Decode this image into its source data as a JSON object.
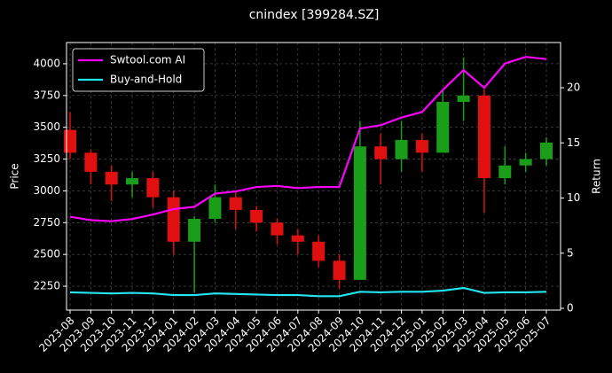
{
  "chart_data": {
    "type": "candlestick",
    "title": "cnindex [399284.SZ]",
    "ylabel": "Price",
    "y2label": "Return",
    "categories": [
      "2023-08",
      "2023-09",
      "2023-10",
      "2023-11",
      "2023-12",
      "2024-01",
      "2024-02",
      "2024-03",
      "2024-04",
      "2024-05",
      "2024-06",
      "2024-07",
      "2024-08",
      "2024-09",
      "2024-10",
      "2024-11",
      "2024-12",
      "2025-01",
      "2025-02",
      "2025-03",
      "2025-04",
      "2025-05",
      "2025-06",
      "2025-07"
    ],
    "open": [
      3480,
      3300,
      3150,
      3050,
      3100,
      2950,
      2600,
      2780,
      2950,
      2850,
      2750,
      2650,
      2600,
      2450,
      2300,
      3350,
      3250,
      3400,
      3300,
      3700,
      3750,
      3100,
      3200,
      3250
    ],
    "high": [
      3620,
      3320,
      3200,
      3150,
      3150,
      3000,
      2800,
      3050,
      3000,
      2880,
      2780,
      2700,
      2650,
      2500,
      3550,
      3450,
      3550,
      3450,
      3800,
      4050,
      3800,
      3350,
      3300,
      3420
    ],
    "low": [
      3250,
      3050,
      2920,
      2950,
      2870,
      2500,
      2200,
      2750,
      2700,
      2680,
      2580,
      2500,
      2400,
      2230,
      2300,
      3050,
      3150,
      3150,
      3300,
      3550,
      2830,
      3050,
      3150,
      3200
    ],
    "close": [
      3300,
      3150,
      3050,
      3100,
      2950,
      2600,
      2780,
      2950,
      2850,
      2750,
      2650,
      2600,
      2450,
      2300,
      3350,
      3250,
      3400,
      3300,
      3700,
      3750,
      3100,
      3200,
      3250,
      3380
    ],
    "up_color": "#1a9e1a",
    "down_color": "#e01010",
    "ylim": [
      2062,
      4167
    ],
    "yticks": [
      2250,
      2500,
      2750,
      3000,
      3250,
      3500,
      3750,
      4000
    ],
    "y2lim": [
      -0.16,
      24.1
    ],
    "y2ticks": [
      0,
      5,
      10,
      15,
      20
    ],
    "grid": true,
    "legend": "upper left",
    "series": [
      {
        "name": "Swtool.com AI",
        "color": "#ff00ff",
        "axis": "y2",
        "values": [
          8.3,
          8.0,
          7.9,
          8.1,
          8.5,
          9.0,
          9.2,
          10.4,
          10.6,
          11.0,
          11.1,
          10.9,
          11.0,
          11.0,
          16.3,
          16.6,
          17.3,
          17.8,
          19.8,
          21.6,
          20.0,
          22.2,
          22.8,
          22.6
        ]
      },
      {
        "name": "Buy-and-Hold",
        "color": "#22e5f0",
        "axis": "y2",
        "values": [
          1.45,
          1.4,
          1.35,
          1.4,
          1.35,
          1.2,
          1.2,
          1.35,
          1.3,
          1.25,
          1.2,
          1.2,
          1.1,
          1.1,
          1.5,
          1.45,
          1.5,
          1.5,
          1.6,
          1.85,
          1.4,
          1.45,
          1.45,
          1.5
        ]
      }
    ]
  }
}
